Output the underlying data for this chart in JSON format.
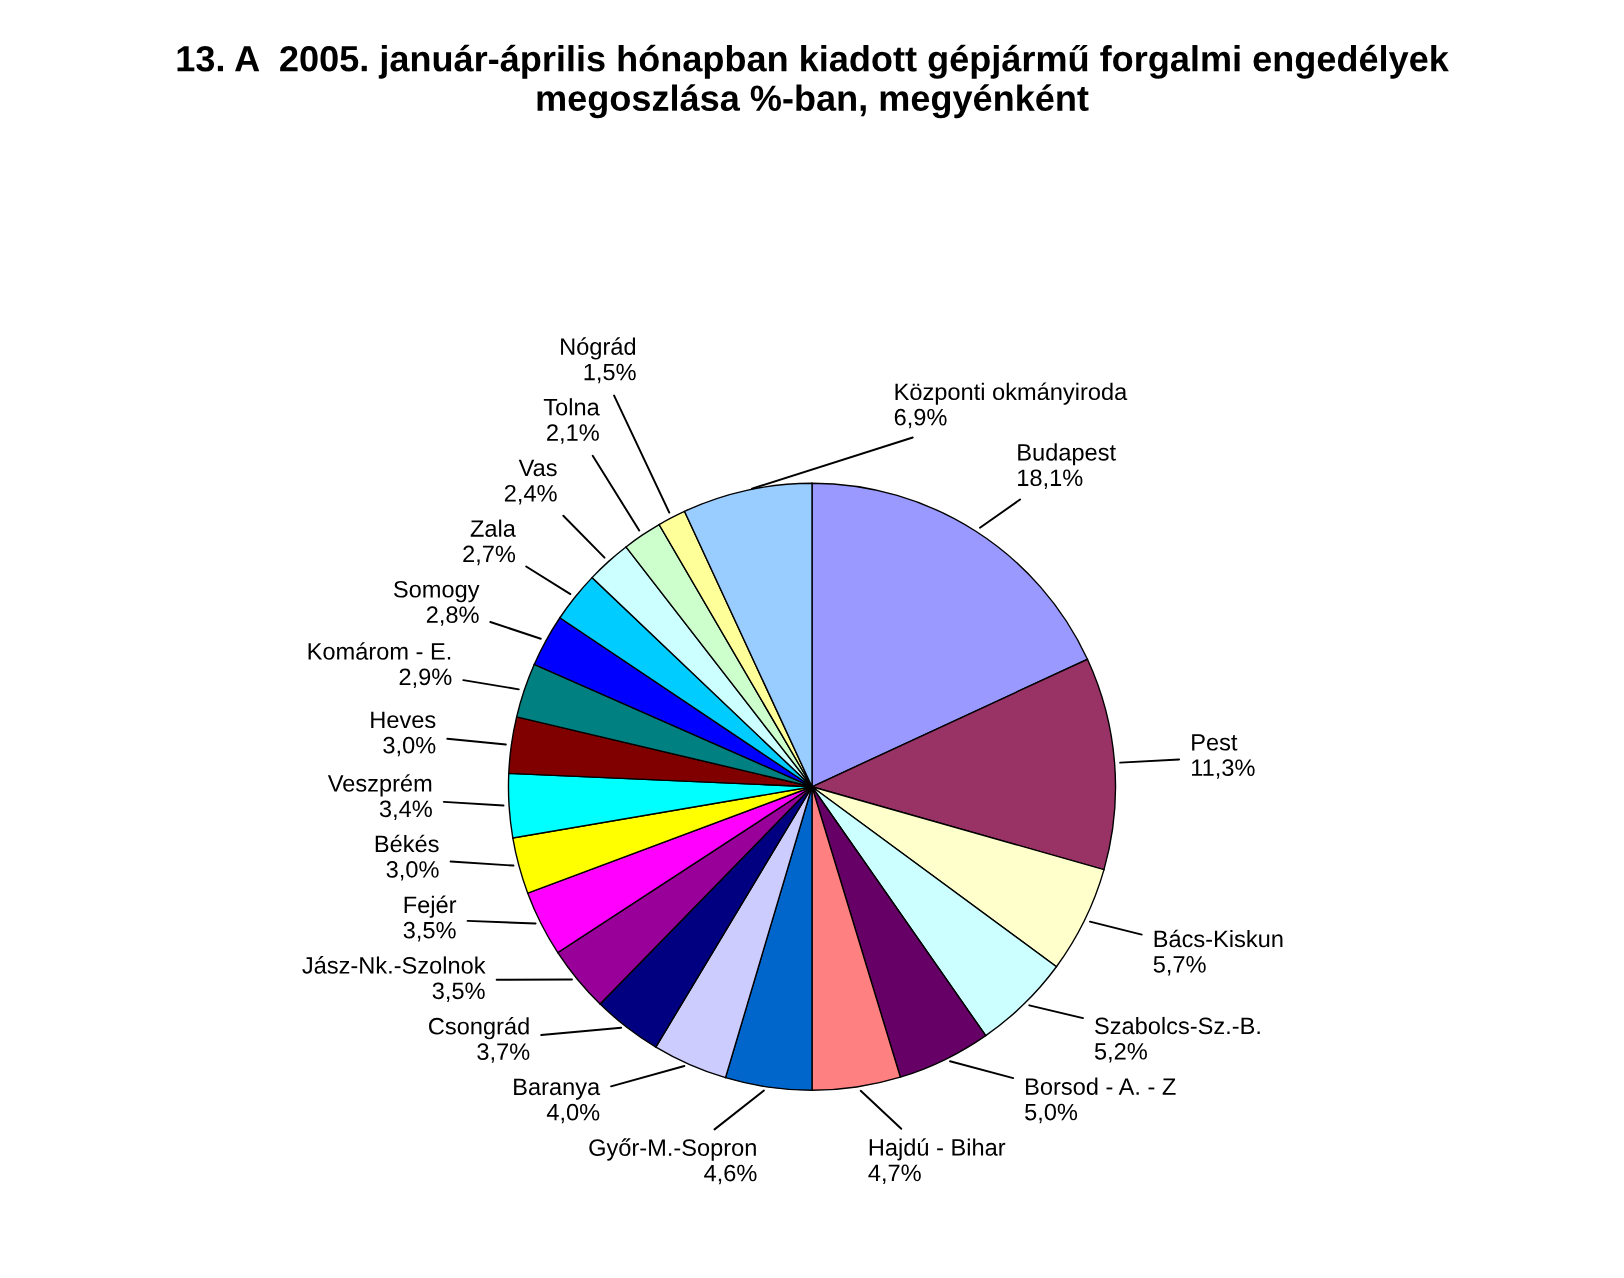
{
  "chart_data": {
    "type": "pie",
    "title": "13. A  2005. január-április hónapban kiadott gépjármű forgalmi engedélyek\nmegoszlása %-ban, megyénként",
    "categories": [
      "Budapest",
      "Pest",
      "Bács-Kiskun",
      "Szabolcs-Sz.-B.",
      "Borsod - A. - Z",
      "Hajdú - Bihar",
      "Győr-M.-Sopron",
      "Baranya",
      "Csongrád",
      "Jász-Nk.-Szolnok",
      "Fejér",
      "Békés",
      "Veszprém",
      "Heves",
      "Komárom - E.",
      "Somogy",
      "Zala",
      "Vas",
      "Tolna",
      "Nógrád",
      "Központi okmányiroda"
    ],
    "values": [
      18.1,
      11.3,
      5.7,
      5.2,
      5.0,
      4.7,
      4.6,
      4.0,
      3.7,
      3.5,
      3.5,
      3.0,
      3.4,
      3.0,
      2.9,
      2.8,
      2.7,
      2.4,
      2.1,
      1.5,
      6.9
    ],
    "value_labels": [
      "18,1%",
      "11,3%",
      "5,7%",
      "5,2%",
      "5,0%",
      "4,7%",
      "4,6%",
      "4,0%",
      "3,7%",
      "3,5%",
      "3,5%",
      "3,0%",
      "3,4%",
      "3,0%",
      "2,9%",
      "2,8%",
      "2,7%",
      "2,4%",
      "2,1%",
      "1,5%",
      "6,9%"
    ],
    "colors": [
      "#9999ff",
      "#993366",
      "#ffffcc",
      "#ccffff",
      "#660066",
      "#ff8080",
      "#0066cc",
      "#ccccff",
      "#000080",
      "#990099",
      "#ff00ff",
      "#ffff00",
      "#00ffff",
      "#800000",
      "#008080",
      "#0000ff",
      "#00ccff",
      "#ccffff",
      "#ccffcc",
      "#ffff99",
      "#99ccff"
    ],
    "legend": false
  }
}
